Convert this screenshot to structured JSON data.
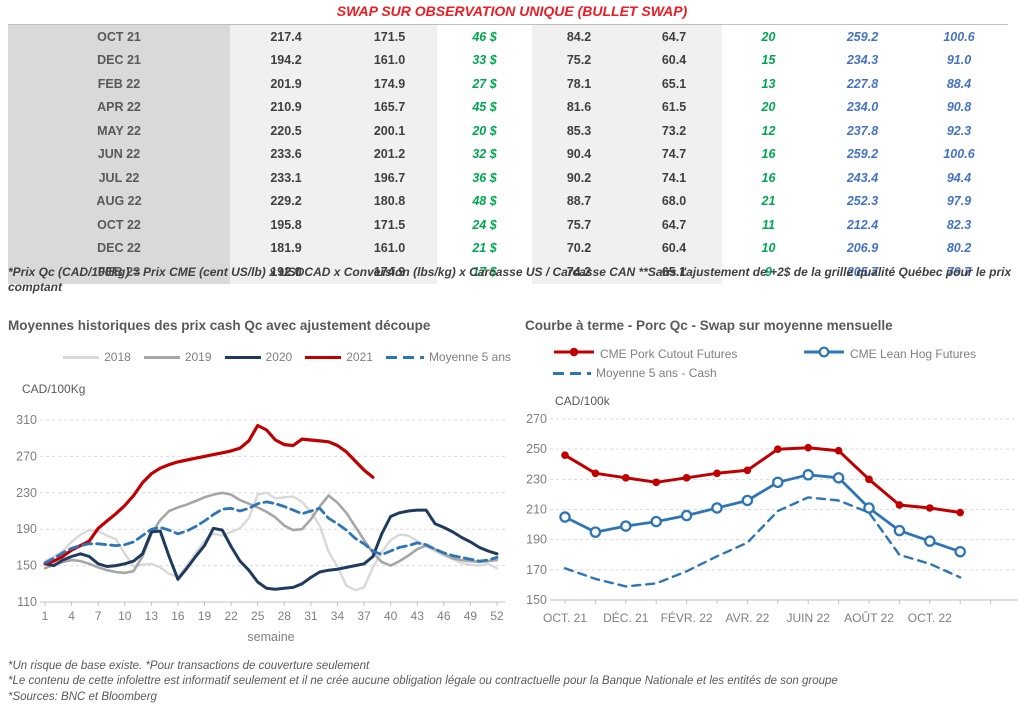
{
  "title": "SWAP SUR OBSERVATION UNIQUE (BULLET SWAP)",
  "colors": {
    "title_red": "#ed1c24",
    "table_green": "#00a651",
    "table_blue": "#4472c4",
    "month_col_bg": "#d9d9d9",
    "value_band_bg": "#f0f0f0",
    "red_series": "#c00000",
    "blue_series": "#2e75b6",
    "navy_series": "#1f3a5f",
    "gray_series": "#a6a6a6",
    "lightgray_series": "#d9d9d9"
  },
  "table": {
    "rows": [
      [
        "OCT 21",
        "217.4",
        "171.5",
        "46 $",
        "84.2",
        "64.7",
        "20",
        "259.2",
        "100.6"
      ],
      [
        "DEC 21",
        "194.2",
        "161.0",
        "33 $",
        "75.2",
        "60.4",
        "15",
        "234.3",
        "91.0"
      ],
      [
        "FEB 22",
        "201.9",
        "174.9",
        "27 $",
        "78.1",
        "65.1",
        "13",
        "227.8",
        "88.4"
      ],
      [
        "APR 22",
        "210.9",
        "165.7",
        "45 $",
        "81.6",
        "61.5",
        "20",
        "234.0",
        "90.8"
      ],
      [
        "MAY 22",
        "220.5",
        "200.1",
        "20 $",
        "85.3",
        "73.2",
        "12",
        "237.8",
        "92.3"
      ],
      [
        "JUN 22",
        "233.6",
        "201.2",
        "32 $",
        "90.4",
        "74.7",
        "16",
        "259.2",
        "100.6"
      ],
      [
        "JUL 22",
        "233.1",
        "196.7",
        "36 $",
        "90.2",
        "74.1",
        "16",
        "243.4",
        "94.4"
      ],
      [
        "AUG 22",
        "229.2",
        "180.8",
        "48 $",
        "88.7",
        "68.0",
        "21",
        "252.3",
        "97.9"
      ],
      [
        "OCT 22",
        "195.8",
        "171.5",
        "24 $",
        "75.7",
        "64.7",
        "11",
        "212.4",
        "82.3"
      ],
      [
        "DEC 22",
        "181.9",
        "161.0",
        "21 $",
        "70.2",
        "60.4",
        "10",
        "206.9",
        "80.2"
      ],
      [
        "FEB 23",
        "192.0",
        "174.9",
        "17 $",
        "74.2",
        "65.1",
        "9",
        "205.7",
        "79.7"
      ]
    ],
    "footnote": "*Prix Qc (CAD/100kg) = Prix CME (cent US/lb) x USDCAD x Conversion (lbs/kg) x Carcasse US / Carcasse CAN **Sans l'ajustement de +2$ de la grille qualité Québec pour le prix comptant"
  },
  "chart_data": [
    {
      "type": "line",
      "title": "Moyennes historiques des prix cash Qc avec ajustement découpe",
      "ylabel": "CAD/100Kg",
      "xlabel": "semaine",
      "ylim": [
        110,
        310
      ],
      "yticks": [
        110,
        150,
        190,
        230,
        270,
        310
      ],
      "x_range": [
        1,
        52
      ],
      "xticks": [
        1,
        4,
        7,
        10,
        13,
        16,
        19,
        22,
        25,
        28,
        31,
        34,
        37,
        40,
        43,
        46,
        49,
        52
      ],
      "grid": "horizontal-dashed",
      "legend_position": "top",
      "series": [
        {
          "name": "2018",
          "color": "#d9d9d9",
          "values": [
            155,
            160,
            166,
            176,
            184,
            189,
            188,
            183,
            179,
            163,
            149,
            151,
            152,
            148,
            141,
            138,
            150,
            164,
            177,
            185,
            183,
            187,
            191,
            202,
            228,
            230,
            224,
            225,
            226,
            220,
            209,
            194,
            165,
            149,
            128,
            123,
            126,
            148,
            165,
            178,
            184,
            183,
            177,
            171,
            166,
            161,
            157,
            153,
            151,
            150,
            152,
            147
          ]
        },
        {
          "name": "2019",
          "color": "#a6a6a6",
          "values": [
            147,
            151,
            154,
            156,
            155,
            152,
            148,
            145,
            143,
            142,
            144,
            160,
            185,
            200,
            210,
            214,
            217,
            221,
            225,
            228,
            230,
            228,
            222,
            218,
            214,
            209,
            203,
            194,
            189,
            190,
            201,
            215,
            227,
            219,
            208,
            193,
            178,
            164,
            154,
            150,
            155,
            161,
            168,
            172,
            168,
            163,
            158,
            156,
            155,
            154,
            155,
            156
          ]
        },
        {
          "name": "2020",
          "color": "#1f3a5f",
          "values": [
            152,
            150,
            156,
            160,
            163,
            160,
            152,
            149,
            150,
            152,
            155,
            163,
            187,
            188,
            160,
            135,
            147,
            160,
            172,
            191,
            189,
            171,
            155,
            145,
            132,
            125,
            124,
            125,
            126,
            130,
            137,
            143,
            145,
            146,
            148,
            150,
            152,
            160,
            185,
            204,
            208,
            210,
            211,
            211,
            196,
            192,
            187,
            181,
            176,
            170,
            166,
            163
          ]
        },
        {
          "name": "2021",
          "color": "#c00000",
          "values": [
            152,
            155,
            160,
            167,
            172,
            177,
            191,
            199,
            207,
            216,
            227,
            241,
            251,
            257,
            261,
            264,
            266,
            268,
            270,
            272,
            274,
            276,
            279,
            287,
            304,
            299,
            288,
            283,
            282,
            289,
            288,
            287,
            286,
            282,
            275,
            265,
            255,
            247,
            null,
            null,
            null,
            null,
            null,
            null,
            null,
            null,
            null,
            null,
            null,
            null,
            null,
            null
          ]
        },
        {
          "name": "Moyenne 5 ans",
          "color": "#2e75b6",
          "dash": true,
          "values": [
            153,
            158,
            164,
            169,
            172,
            174,
            174,
            173,
            172,
            173,
            176,
            183,
            190,
            192,
            189,
            185,
            188,
            193,
            199,
            206,
            212,
            213,
            210,
            213,
            218,
            220,
            218,
            215,
            211,
            207,
            210,
            213,
            202,
            196,
            189,
            180,
            174,
            166,
            162,
            166,
            170,
            172,
            175,
            173,
            168,
            164,
            161,
            159,
            157,
            155,
            156,
            159
          ]
        }
      ]
    },
    {
      "type": "line",
      "title": "Courbe à terme - Porc Qc - Swap sur moyenne mensuelle",
      "ylabel": "CAD/100k",
      "ylim": [
        150,
        270
      ],
      "yticks": [
        150,
        170,
        190,
        210,
        230,
        250,
        270
      ],
      "xtick_labels": [
        "OCT. 21",
        "DÉC. 21",
        "FÉVR. 22",
        "AVR. 22",
        "JUIN 22",
        "AOÛT 22",
        "OCT. 22"
      ],
      "xtick_label_indices": [
        0,
        2,
        4,
        6,
        8,
        10,
        12
      ],
      "grid": "horizontal-dashed",
      "legend_position": "top",
      "series": [
        {
          "name": "CME Pork Cutout Futures",
          "color": "#c00000",
          "marker": "filled",
          "values": [
            246,
            234,
            231,
            228,
            231,
            234,
            236,
            250,
            251,
            249,
            230,
            213,
            211,
            208
          ]
        },
        {
          "name": "CME Lean Hog Futures",
          "color": "#2e75b6",
          "marker": "open",
          "values": [
            205,
            195,
            199,
            202,
            206,
            211,
            216,
            228,
            233,
            231,
            211,
            196,
            189,
            182
          ]
        },
        {
          "name": "Moyenne 5 ans - Cash",
          "color": "#2e75b6",
          "dash": true,
          "values": [
            171,
            164,
            159,
            161,
            169,
            179,
            188,
            209,
            218,
            216,
            208,
            180,
            174,
            165
          ]
        }
      ]
    }
  ],
  "footnotes": [
    "*Un risque de base existe. *Pour transactions de couverture seulement",
    "*Le contenu de cette infolettre est informatif seulement et il ne crée aucune obligation légale ou contractuelle pour la Banque Nationale et les entités de son groupe",
    "*Sources: BNC et Bloomberg"
  ]
}
